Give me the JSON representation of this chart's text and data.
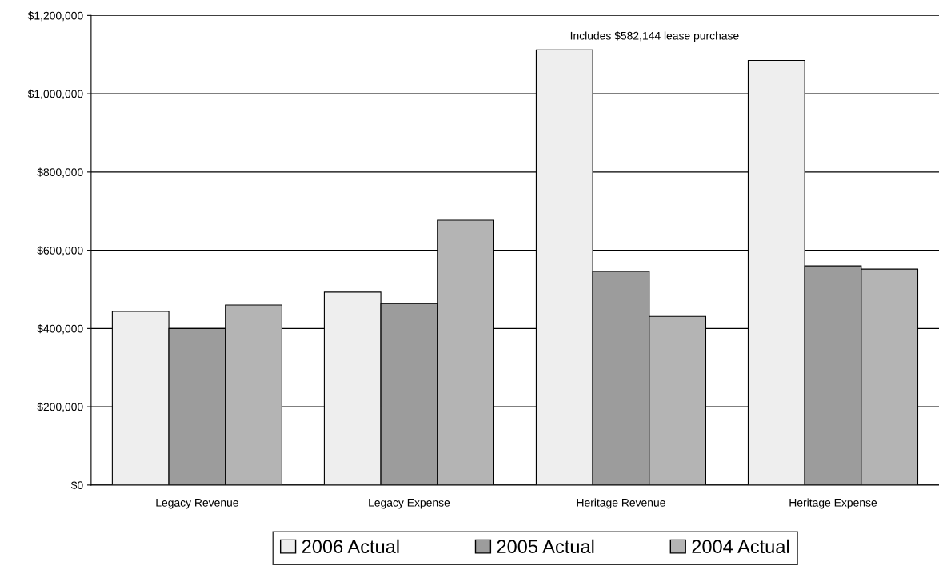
{
  "chart_data": {
    "type": "bar",
    "categories": [
      "Legacy Revenue",
      "Legacy Expense",
      "Heritage Revenue",
      "Heritage Expense"
    ],
    "series": [
      {
        "name": "2006 Actual",
        "color": "#eeeeee",
        "values": [
          444000,
          493000,
          1112000,
          1085000
        ]
      },
      {
        "name": "2005 Actual",
        "color": "#9c9c9c",
        "values": [
          400000,
          464000,
          546000,
          560000
        ]
      },
      {
        "name": "2004 Actual",
        "color": "#b4b4b4",
        "values": [
          460000,
          677000,
          431000,
          552000
        ]
      }
    ],
    "ylim": [
      0,
      1200000
    ],
    "yticks": [
      {
        "value": 0,
        "label": "$0"
      },
      {
        "value": 200000,
        "label": "$200,000"
      },
      {
        "value": 400000,
        "label": "$400,000"
      },
      {
        "value": 600000,
        "label": "$600,000"
      },
      {
        "value": 800000,
        "label": "$800,000"
      },
      {
        "value": 1000000,
        "label": "$1,000,000"
      },
      {
        "value": 1200000,
        "label": "$1,200,000"
      }
    ],
    "annotations": [
      "Includes $582,144 lease purchase"
    ],
    "grid": "y",
    "legend": "bottom"
  }
}
